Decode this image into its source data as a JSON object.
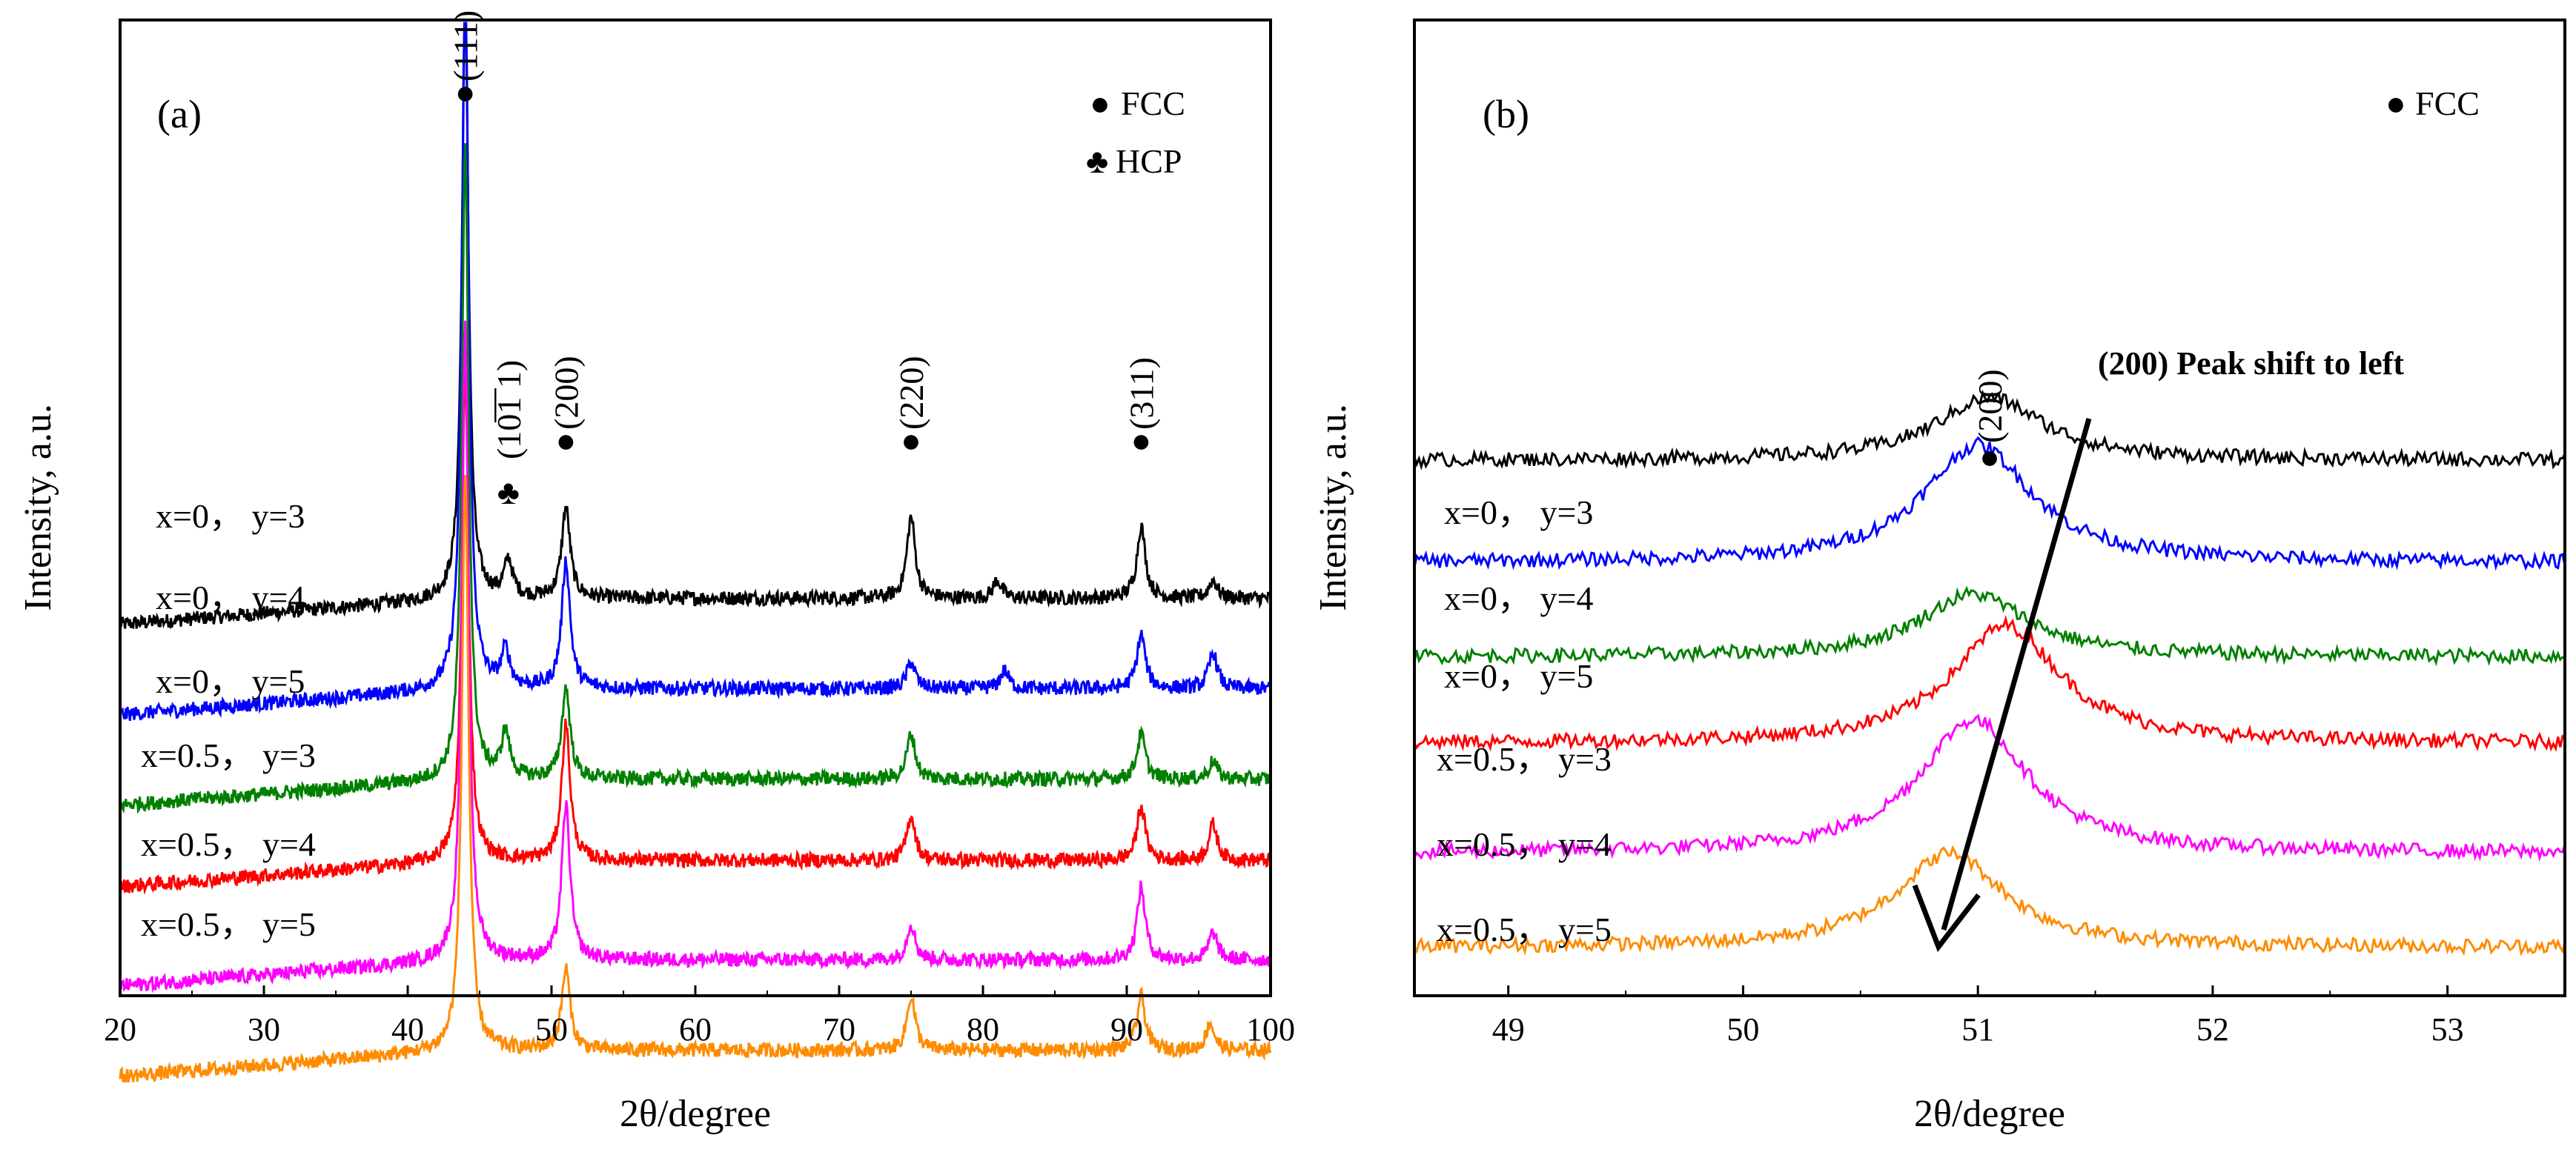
{
  "chart_data": [
    {
      "type": "line",
      "panel": "(a)",
      "xlabel": "2θ/degree",
      "ylabel": "Intensity, a.u.",
      "xlim": [
        20,
        100
      ],
      "xticks": [
        20,
        30,
        40,
        50,
        60,
        70,
        80,
        90,
        100
      ],
      "legend": [
        {
          "marker": "●",
          "label": "FCC"
        },
        {
          "marker": "♣",
          "label": "HCP"
        }
      ],
      "peak_labels": [
        {
          "text": "(111)",
          "x": 44.0,
          "marker": "●"
        },
        {
          "text": "(10̅1̅ 1)",
          "x": 47.0,
          "marker": "♣"
        },
        {
          "text": "(200)",
          "x": 51.0,
          "marker": "●"
        },
        {
          "text": "(220)",
          "x": 75.0,
          "marker": "●"
        },
        {
          "text": "(311)",
          "x": 91.0,
          "marker": "●"
        }
      ],
      "series": [
        {
          "name": "x=0，  y=3",
          "color": "#000000",
          "baseline": 42,
          "peaks": [
            [
              44.0,
              66
            ],
            [
              47.0,
              4
            ],
            [
              51.0,
              10
            ],
            [
              75.0,
              9
            ],
            [
              81.0,
              2
            ],
            [
              91.0,
              8
            ],
            [
              96.0,
              2
            ]
          ]
        },
        {
          "name": "x=0，  y=4",
          "color": "#0000ff",
          "baseline": 32,
          "peaks": [
            [
              44.0,
              80
            ],
            [
              46.8,
              4
            ],
            [
              51.0,
              14
            ],
            [
              75.0,
              3
            ],
            [
              81.5,
              2
            ],
            [
              91.0,
              6
            ],
            [
              96.0,
              4
            ]
          ]
        },
        {
          "name": "x=0，  y=5",
          "color": "#008000",
          "baseline": 22,
          "peaks": [
            [
              44.0,
              70
            ],
            [
              46.8,
              5
            ],
            [
              51.0,
              10
            ],
            [
              75.0,
              5
            ],
            [
              91.0,
              5
            ],
            [
              96.0,
              2
            ]
          ]
        },
        {
          "name": "x=0.5，  y=3",
          "color": "#ff0000",
          "baseline": 13,
          "peaks": [
            [
              44.0,
              55
            ],
            [
              51.0,
              15
            ],
            [
              75.0,
              5
            ],
            [
              91.0,
              6
            ],
            [
              96.0,
              4
            ]
          ]
        },
        {
          "name": "x=0.5，  y=4",
          "color": "#ff00ff",
          "baseline": 2,
          "peaks": [
            [
              44.0,
              70
            ],
            [
              51.0,
              17
            ],
            [
              75.0,
              4
            ],
            [
              91.0,
              8
            ],
            [
              96.0,
              3
            ]
          ]
        },
        {
          "name": "x=0.5，  y=5",
          "color": "#ff8c00",
          "baseline": -8,
          "peaks": [
            [
              44.0,
              64
            ],
            [
              51.0,
              9
            ],
            [
              75.0,
              6
            ],
            [
              91.0,
              6
            ],
            [
              95.8,
              3
            ]
          ]
        }
      ]
    },
    {
      "type": "line",
      "panel": "(b)",
      "xlabel": "2θ/degree",
      "ylabel": "Intensity, a.u.",
      "xlim": [
        48.6,
        53.5
      ],
      "xticks": [
        49,
        50,
        51,
        52,
        53
      ],
      "legend": [
        {
          "marker": "●",
          "label": "FCC"
        }
      ],
      "peak_labels": [
        {
          "text": "(200)",
          "x": 51.05,
          "marker": "●"
        }
      ],
      "annotation": "(200) Peak shift to left",
      "series": [
        {
          "name": "x=0，  y=3",
          "color": "#000000",
          "baseline": 64,
          "peak_center": 51.05,
          "peak_height": 8
        },
        {
          "name": "x=0，  y=4",
          "color": "#0000ff",
          "baseline": 51,
          "peak_center": 51.0,
          "peak_height": 15
        },
        {
          "name": "x=0，  y=5",
          "color": "#008000",
          "baseline": 39,
          "peak_center": 50.98,
          "peak_height": 8
        },
        {
          "name": "x=0.5，  y=3",
          "color": "#ff0000",
          "baseline": 28,
          "peak_center": 51.12,
          "peak_height": 15
        },
        {
          "name": "x=0.5，  y=4",
          "color": "#ff00ff",
          "baseline": 14,
          "peak_center": 50.98,
          "peak_height": 17
        },
        {
          "name": "x=0.5，  y=5",
          "color": "#ff8c00",
          "baseline": 2,
          "peak_center": 50.88,
          "peak_height": 12
        }
      ]
    }
  ]
}
